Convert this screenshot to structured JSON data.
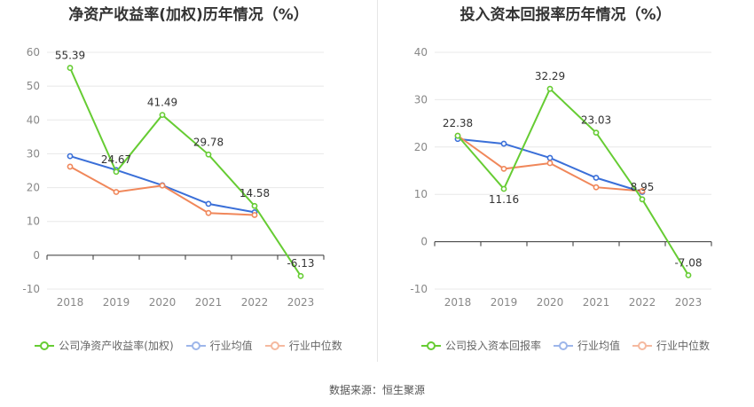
{
  "chart_data": [
    {
      "type": "line",
      "title": "净资产收益率(加权)历年情况（%）",
      "categories": [
        "2018",
        "2019",
        "2020",
        "2021",
        "2022",
        "2023"
      ],
      "ylim": [
        -10,
        60
      ],
      "yticks": [
        "60",
        "50",
        "40",
        "30",
        "20",
        "10",
        "0",
        "-10"
      ],
      "grid": true,
      "legend_position": "bottom",
      "series": [
        {
          "name": "公司净资产收益率(加权)",
          "color": "#66cc33",
          "values": [
            55.39,
            24.67,
            41.49,
            29.78,
            14.58,
            -6.13
          ],
          "labels": [
            "55.39",
            "24.67",
            "41.49",
            "29.78",
            "14.58",
            "-6.13"
          ]
        },
        {
          "name": "行业均值",
          "color": "#3a6fd8",
          "values": [
            29.3,
            25.2,
            20.7,
            15.2,
            12.7,
            null
          ]
        },
        {
          "name": "行业中位数",
          "color": "#f0875a",
          "values": [
            26.2,
            18.7,
            20.6,
            12.5,
            11.9,
            null
          ]
        }
      ]
    },
    {
      "type": "line",
      "title": "投入资本回报率历年情况（%）",
      "categories": [
        "2018",
        "2019",
        "2020",
        "2021",
        "2022",
        "2023"
      ],
      "ylim": [
        -10,
        40
      ],
      "yticks": [
        "40",
        "30",
        "20",
        "10",
        "0",
        "-10"
      ],
      "grid": true,
      "legend_position": "bottom",
      "series": [
        {
          "name": "公司投入资本回报率",
          "color": "#66cc33",
          "values": [
            22.38,
            11.16,
            32.29,
            23.03,
            8.95,
            -7.08
          ],
          "labels": [
            "22.38",
            "11.16",
            "32.29",
            "23.03",
            "8.95",
            "-7.08"
          ]
        },
        {
          "name": "行业均值",
          "color": "#3a6fd8",
          "values": [
            21.7,
            20.7,
            17.7,
            13.5,
            10.5,
            null
          ]
        },
        {
          "name": "行业中位数",
          "color": "#f0875a",
          "values": [
            22.4,
            15.4,
            16.6,
            11.5,
            10.7,
            null
          ]
        }
      ]
    }
  ],
  "source": "数据来源：恒生聚源"
}
